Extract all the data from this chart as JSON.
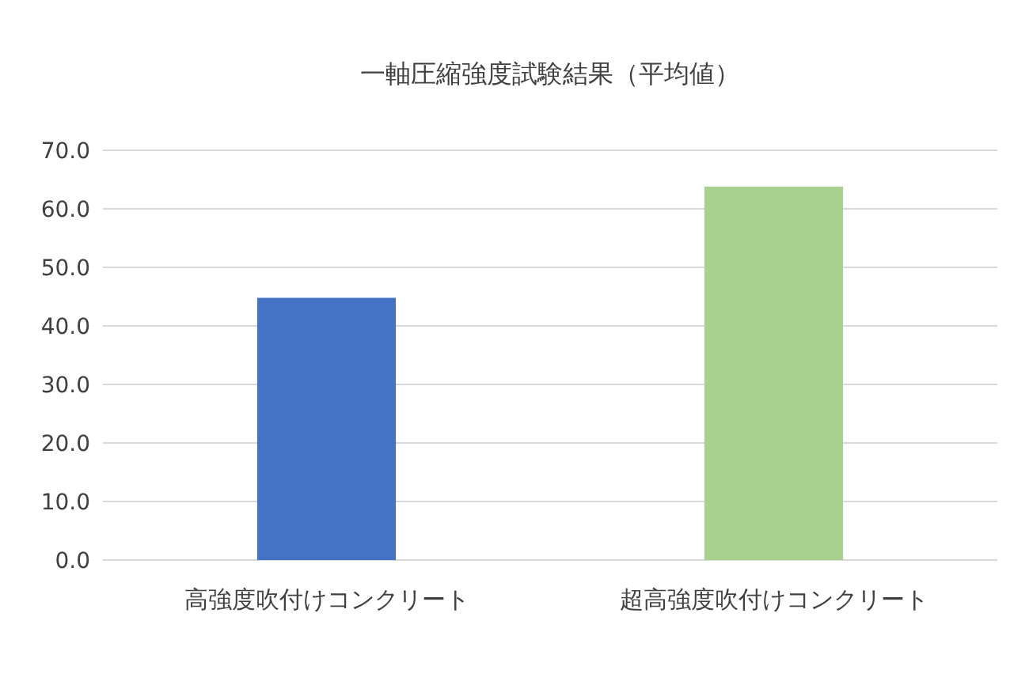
{
  "chart_data": {
    "type": "bar",
    "title": "一軸圧縮強度試験結果（平均値）",
    "categories": [
      "高強度吹付けコンクリート",
      "超高強度吹付けコンクリート"
    ],
    "values": [
      44.8,
      63.8
    ],
    "colors": [
      "#4472c4",
      "#a9d18e"
    ],
    "ylim": [
      0,
      70
    ],
    "yticks": [
      {
        "value": 0,
        "label": "0.0"
      },
      {
        "value": 10,
        "label": "10.0"
      },
      {
        "value": 20,
        "label": "20.0"
      },
      {
        "value": 30,
        "label": "30.0"
      },
      {
        "value": 40,
        "label": "40.0"
      },
      {
        "value": 50,
        "label": "50.0"
      },
      {
        "value": 60,
        "label": "60.0"
      },
      {
        "value": 70,
        "label": "70.0"
      }
    ],
    "grid": "y"
  }
}
